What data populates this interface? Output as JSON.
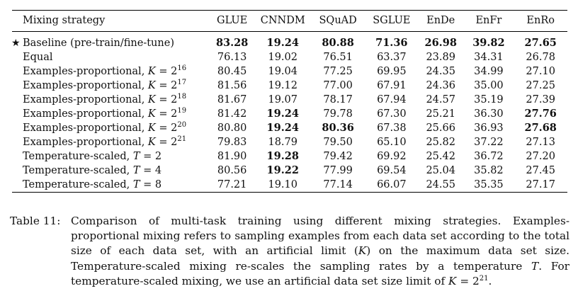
{
  "table": {
    "columns": [
      "Mixing strategy",
      "GLUE",
      "CNNDM",
      "SQuAD",
      "SGLUE",
      "EnDe",
      "EnFr",
      "EnRo"
    ],
    "rows": [
      {
        "star": "★",
        "name": "Baseline (pre-train/fine-tune)",
        "param": "",
        "eq": "",
        "base": "",
        "exp": "",
        "values": [
          "83.28",
          "19.24",
          "80.88",
          "71.36",
          "26.98",
          "39.82",
          "27.65"
        ],
        "bold": [
          true,
          true,
          true,
          true,
          true,
          true,
          true
        ]
      },
      {
        "star": "",
        "name": "Equal",
        "param": "",
        "eq": "",
        "base": "",
        "exp": "",
        "values": [
          "76.13",
          "19.02",
          "76.51",
          "63.37",
          "23.89",
          "34.31",
          "26.78"
        ],
        "bold": [
          false,
          false,
          false,
          false,
          false,
          false,
          false
        ]
      },
      {
        "star": "",
        "name": "Examples-proportional, ",
        "param": "K",
        "eq": " = ",
        "base": "2",
        "exp": "16",
        "values": [
          "80.45",
          "19.04",
          "77.25",
          "69.95",
          "24.35",
          "34.99",
          "27.10"
        ],
        "bold": [
          false,
          false,
          false,
          false,
          false,
          false,
          false
        ]
      },
      {
        "star": "",
        "name": "Examples-proportional, ",
        "param": "K",
        "eq": " = ",
        "base": "2",
        "exp": "17",
        "values": [
          "81.56",
          "19.12",
          "77.00",
          "67.91",
          "24.36",
          "35.00",
          "27.25"
        ],
        "bold": [
          false,
          false,
          false,
          false,
          false,
          false,
          false
        ]
      },
      {
        "star": "",
        "name": "Examples-proportional, ",
        "param": "K",
        "eq": " = ",
        "base": "2",
        "exp": "18",
        "values": [
          "81.67",
          "19.07",
          "78.17",
          "67.94",
          "24.57",
          "35.19",
          "27.39"
        ],
        "bold": [
          false,
          false,
          false,
          false,
          false,
          false,
          false
        ]
      },
      {
        "star": "",
        "name": "Examples-proportional, ",
        "param": "K",
        "eq": " = ",
        "base": "2",
        "exp": "19",
        "values": [
          "81.42",
          "19.24",
          "79.78",
          "67.30",
          "25.21",
          "36.30",
          "27.76"
        ],
        "bold": [
          false,
          true,
          false,
          false,
          false,
          false,
          true
        ]
      },
      {
        "star": "",
        "name": "Examples-proportional, ",
        "param": "K",
        "eq": " = ",
        "base": "2",
        "exp": "20",
        "values": [
          "80.80",
          "19.24",
          "80.36",
          "67.38",
          "25.66",
          "36.93",
          "27.68"
        ],
        "bold": [
          false,
          true,
          true,
          false,
          false,
          false,
          true
        ]
      },
      {
        "star": "",
        "name": "Examples-proportional, ",
        "param": "K",
        "eq": " = ",
        "base": "2",
        "exp": "21",
        "values": [
          "79.83",
          "18.79",
          "79.50",
          "65.10",
          "25.82",
          "37.22",
          "27.13"
        ],
        "bold": [
          false,
          false,
          false,
          false,
          false,
          false,
          false
        ]
      },
      {
        "star": "",
        "name": "Temperature-scaled, ",
        "param": "T",
        "eq": " = ",
        "base": "2",
        "exp": "",
        "values": [
          "81.90",
          "19.28",
          "79.42",
          "69.92",
          "25.42",
          "36.72",
          "27.20"
        ],
        "bold": [
          false,
          true,
          false,
          false,
          false,
          false,
          false
        ]
      },
      {
        "star": "",
        "name": "Temperature-scaled, ",
        "param": "T",
        "eq": " = ",
        "base": "4",
        "exp": "",
        "values": [
          "80.56",
          "19.22",
          "77.99",
          "69.54",
          "25.04",
          "35.82",
          "27.45"
        ],
        "bold": [
          false,
          true,
          false,
          false,
          false,
          false,
          false
        ]
      },
      {
        "star": "",
        "name": "Temperature-scaled, ",
        "param": "T",
        "eq": " = ",
        "base": "8",
        "exp": "",
        "values": [
          "77.21",
          "19.10",
          "77.14",
          "66.07",
          "24.55",
          "35.35",
          "27.17"
        ],
        "bold": [
          false,
          false,
          false,
          false,
          false,
          false,
          false
        ]
      }
    ]
  },
  "caption": {
    "label": "Table 11:",
    "part1": "Comparison of multi-task training using different mixing strategies. Examples-proportional mixing refers to sampling examples from each data set according to the total size of each data set, with an artificial limit (",
    "k_symbol": "K",
    "part2": ") on the maximum data set size. Temperature-scaled mixing re-scales the sampling rates by a temperature ",
    "t_symbol": "T",
    "part3": ". For temperature-scaled mixing, we use an artificial data set size limit of ",
    "k_symbol_2": "K",
    "eq_text": " = 2",
    "exp": "21",
    "end": "."
  }
}
